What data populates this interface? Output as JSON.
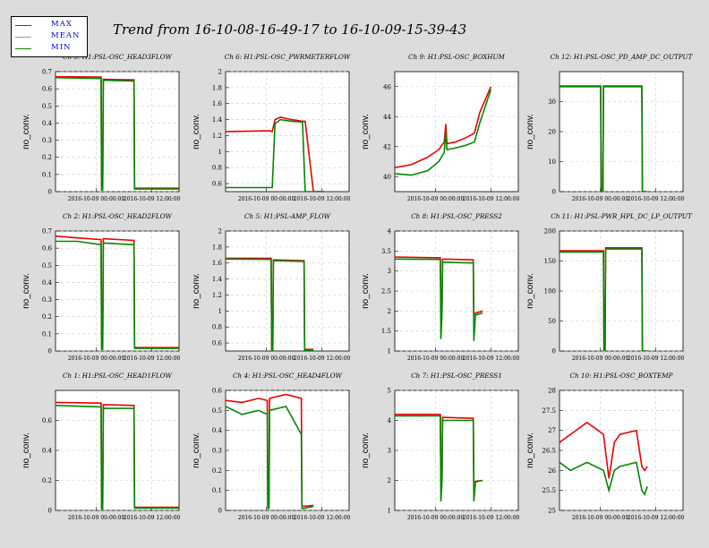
{
  "title": "Trend from 16-10-08-16-49-17 to 16-10-09-15-39-43",
  "legend": [
    {
      "label": "MAX",
      "color": "#ee0000"
    },
    {
      "label": "MEAN",
      "color": "#999999"
    },
    {
      "label": "MIN",
      "color": "#008800"
    }
  ],
  "chart_data": [
    {
      "type": "line",
      "title": "Ch 3: H1:PSL-OSC_HEAD3FLOW",
      "ylabel": "no_conv.",
      "ylim": [
        0,
        0.7
      ],
      "yticks": [
        "0",
        "0.1",
        "0.2",
        "0.3",
        "0.4",
        "0.5",
        "0.6",
        "0.7"
      ],
      "xticks": [
        "2016-10-09 00:00:00",
        "2016-10-09 12:00:00"
      ],
      "x": [
        0,
        0.83,
        0.84,
        0.86,
        0.87,
        1.43,
        1.44,
        1.47,
        2.01,
        2.04,
        2.1,
        2.25
      ],
      "series": [
        {
          "name": "MIN",
          "values": [
            0.665,
            0.66,
            0.01,
            0.01,
            0.65,
            0.645,
            0.015,
            0.015,
            0.015,
            0.015,
            0.015,
            0.015
          ]
        },
        {
          "name": "MAX",
          "values": [
            0.67,
            0.668,
            0.02,
            0.02,
            0.655,
            0.652,
            0.02,
            0.02,
            0.02,
            0.02,
            0.02,
            0.02
          ]
        }
      ]
    },
    {
      "type": "line",
      "title": "Ch 6: H1:PSL-OSC_PWRMETERFLOW",
      "ylabel": "no_conv.",
      "ylim": [
        0.5,
        2
      ],
      "yticks": [
        "0.6",
        "0.8",
        "1",
        "1.2",
        "1.4",
        "1.6",
        "1.8",
        "2"
      ],
      "xticks": [
        "2016-10-09 00:00:00",
        "2016-10-09 12:00:00"
      ],
      "x": [
        0,
        0.8,
        0.85,
        0.9,
        1.0,
        1.2,
        1.4,
        1.45,
        1.6,
        1.8
      ],
      "series": [
        {
          "name": "MIN",
          "values": [
            0.55,
            0.55,
            0.55,
            1.35,
            1.4,
            1.38,
            1.37,
            0.5,
            0.5,
            0.5
          ]
        },
        {
          "name": "MAX",
          "values": [
            1.25,
            1.26,
            1.25,
            1.4,
            1.43,
            1.4,
            1.38,
            1.38,
            0.5,
            0.5
          ]
        }
      ]
    },
    {
      "type": "line",
      "title": "Ch 9: H1:PSL-OSC_BOXHUM",
      "ylabel": "no_conv.",
      "ylim": [
        39,
        47
      ],
      "yticks": [
        "40",
        "42",
        "44",
        "46"
      ],
      "xticks": [
        "2016-10-09 00:00:00",
        "2016-10-09 12:00:00"
      ],
      "x": [
        0,
        0.3,
        0.6,
        0.8,
        0.9,
        0.93,
        0.95,
        1.1,
        1.3,
        1.45,
        1.55,
        1.75
      ],
      "series": [
        {
          "name": "MIN",
          "values": [
            40.2,
            40.1,
            40.4,
            41.0,
            41.6,
            43.0,
            41.8,
            41.9,
            42.1,
            42.3,
            43.6,
            45.8
          ]
        },
        {
          "name": "MAX",
          "values": [
            40.6,
            40.8,
            41.3,
            41.8,
            42.3,
            43.5,
            42.2,
            42.3,
            42.6,
            42.9,
            44.3,
            46.0
          ]
        }
      ]
    },
    {
      "type": "line",
      "title": "Ch 12: H1:PSL-OSC_PD_AMP_DC_OUTPUT",
      "ylabel": "no_conv.",
      "ylim": [
        0,
        40
      ],
      "yticks": [
        "0",
        "10",
        "20",
        "30"
      ],
      "xticks": [
        "2016-10-09 00:00:00",
        "2016-10-09 12:00:00"
      ],
      "x": [
        0,
        0.75,
        0.76,
        0.79,
        0.8,
        1.5,
        1.51,
        1.6
      ],
      "series": [
        {
          "name": "MIN",
          "values": [
            35,
            35,
            0,
            0,
            35,
            35,
            0,
            0
          ]
        },
        {
          "name": "MAX",
          "values": [
            35.2,
            35.2,
            0,
            0,
            35.2,
            35.2,
            0,
            0
          ]
        }
      ]
    },
    {
      "type": "line",
      "title": "Ch 2: H1:PSL-OSC_HEAD2FLOW",
      "ylabel": "no_conv.",
      "ylim": [
        0,
        0.7
      ],
      "yticks": [
        "0",
        "0.1",
        "0.2",
        "0.3",
        "0.4",
        "0.5",
        "0.6",
        "0.7"
      ],
      "xticks": [
        "2016-10-09 00:00:00",
        "2016-10-09 12:00:00"
      ],
      "x": [
        0,
        0.4,
        0.83,
        0.84,
        0.86,
        0.87,
        1.43,
        1.44,
        1.47,
        2.25
      ],
      "series": [
        {
          "name": "MIN",
          "values": [
            0.64,
            0.64,
            0.62,
            0.01,
            0.01,
            0.63,
            0.62,
            0.015,
            0.015,
            0.015
          ]
        },
        {
          "name": "MAX",
          "values": [
            0.67,
            0.66,
            0.65,
            0.02,
            0.02,
            0.655,
            0.645,
            0.02,
            0.02,
            0.02
          ]
        }
      ]
    },
    {
      "type": "line",
      "title": "Ch 5: H1:PSL-AMP_FLOW",
      "ylabel": "no_conv.",
      "ylim": [
        0.5,
        2
      ],
      "yticks": [
        "0.6",
        "0.8",
        "1",
        "1.2",
        "1.4",
        "1.6",
        "1.8",
        "2"
      ],
      "xticks": [
        "2016-10-09 00:00:00",
        "2016-10-09 12:00:00"
      ],
      "x": [
        0,
        0.83,
        0.84,
        0.86,
        0.87,
        1.43,
        1.44,
        1.47,
        1.6
      ],
      "series": [
        {
          "name": "MIN",
          "values": [
            1.65,
            1.645,
            0.51,
            0.51,
            1.63,
            1.62,
            0.51,
            0.51,
            0.51
          ]
        },
        {
          "name": "MAX",
          "values": [
            1.66,
            1.66,
            0.52,
            0.52,
            1.64,
            1.63,
            0.52,
            0.52,
            0.52
          ]
        }
      ]
    },
    {
      "type": "line",
      "title": "Ch 8: H1:PSL-OSC_PRESS2",
      "ylabel": "no_conv.",
      "ylim": [
        1,
        4
      ],
      "yticks": [
        "1",
        "1.5",
        "2",
        "2.5",
        "3",
        "3.5",
        "4"
      ],
      "xticks": [
        "2016-10-09 00:00:00",
        "2016-10-09 12:00:00"
      ],
      "x": [
        0,
        0.83,
        0.84,
        0.86,
        0.87,
        1.43,
        1.44,
        1.47,
        1.6
      ],
      "series": [
        {
          "name": "MIN",
          "values": [
            3.3,
            3.29,
            1.3,
            1.9,
            3.22,
            3.2,
            1.25,
            1.9,
            1.95
          ]
        },
        {
          "name": "MAX",
          "values": [
            3.35,
            3.33,
            2.0,
            2.0,
            3.3,
            3.28,
            1.9,
            1.95,
            2.0
          ]
        }
      ]
    },
    {
      "type": "line",
      "title": "Ch 11: H1:PSL-PWR_HPL_DC_LP_OUTPUT",
      "ylabel": "no_conv.",
      "ylim": [
        0,
        200
      ],
      "yticks": [
        "0",
        "50",
        "100",
        "150",
        "200"
      ],
      "xticks": [
        "2016-10-09 00:00:00",
        "2016-10-09 12:00:00"
      ],
      "x": [
        0,
        0.8,
        0.81,
        0.83,
        0.84,
        1.5,
        1.51,
        1.6
      ],
      "series": [
        {
          "name": "MIN",
          "values": [
            165,
            165,
            0,
            0,
            170,
            170,
            0,
            0
          ]
        },
        {
          "name": "MAX",
          "values": [
            167,
            167,
            0,
            0,
            172,
            172,
            0,
            0
          ]
        }
      ]
    },
    {
      "type": "line",
      "title": "Ch 1: H1:PSL-OSC_HEAD1FLOW",
      "ylabel": "no_conv.",
      "ylim": [
        0,
        0.8
      ],
      "yticks": [
        "0",
        "0.2",
        "0.4",
        "0.6"
      ],
      "xticks": [
        "2016-10-09 00:00:00",
        "2016-10-09 12:00:00"
      ],
      "x": [
        0,
        0.83,
        0.84,
        0.86,
        0.87,
        1.43,
        1.44,
        1.47,
        2.25
      ],
      "series": [
        {
          "name": "MIN",
          "values": [
            0.7,
            0.69,
            0.01,
            0.01,
            0.68,
            0.68,
            0.015,
            0.015,
            0.015
          ]
        },
        {
          "name": "MAX",
          "values": [
            0.72,
            0.715,
            0.02,
            0.02,
            0.705,
            0.7,
            0.02,
            0.02,
            0.02
          ]
        }
      ]
    },
    {
      "type": "line",
      "title": "Ch 4: H1:PSL-OSC_HEAD4FLOW",
      "ylabel": "no_conv.",
      "ylim": [
        0,
        0.6
      ],
      "yticks": [
        "0",
        "0.1",
        "0.2",
        "0.3",
        "0.4",
        "0.5",
        "0.6"
      ],
      "xticks": [
        "2016-10-09 00:00:00",
        "2016-10-09 12:00:00"
      ],
      "x": [
        0,
        0.3,
        0.6,
        0.76,
        0.77,
        0.79,
        0.8,
        1.1,
        1.38,
        1.39,
        1.42,
        1.6
      ],
      "series": [
        {
          "name": "MIN",
          "values": [
            0.52,
            0.48,
            0.5,
            0.48,
            0.01,
            0.01,
            0.5,
            0.52,
            0.38,
            0.01,
            0.01,
            0.02
          ]
        },
        {
          "name": "MAX",
          "values": [
            0.55,
            0.54,
            0.56,
            0.55,
            0.02,
            0.02,
            0.56,
            0.58,
            0.56,
            0.02,
            0.02,
            0.025
          ]
        }
      ]
    },
    {
      "type": "line",
      "title": "Ch 7: H1:PSL-OSC_PRESS1",
      "ylabel": "no_conv.",
      "ylim": [
        1,
        5
      ],
      "yticks": [
        "1",
        "2",
        "3",
        "4",
        "5"
      ],
      "xticks": [
        "2016-10-09 00:00:00",
        "2016-10-09 12:00:00"
      ],
      "x": [
        0,
        0.83,
        0.84,
        0.86,
        0.87,
        1.43,
        1.44,
        1.47,
        1.6
      ],
      "series": [
        {
          "name": "MIN",
          "values": [
            4.15,
            4.15,
            1.3,
            1.95,
            4.0,
            4.0,
            1.3,
            1.95,
            2.0
          ]
        },
        {
          "name": "MAX",
          "values": [
            4.2,
            4.2,
            1.95,
            1.95,
            4.1,
            4.07,
            1.95,
            1.97,
            2.0
          ]
        }
      ]
    },
    {
      "type": "line",
      "title": "Ch 10: H1:PSL-OSC_BOXTEMP",
      "ylabel": "no_conv.",
      "ylim": [
        25,
        28
      ],
      "yticks": [
        "25",
        "25.5",
        "26",
        "26.5",
        "27",
        "27.5",
        "28"
      ],
      "xticks": [
        "2016-10-09 00:00:00",
        "2016-10-09 12:00:00"
      ],
      "x": [
        0,
        0.2,
        0.5,
        0.8,
        0.9,
        1.0,
        1.1,
        1.4,
        1.5,
        1.55,
        1.6
      ],
      "series": [
        {
          "name": "MIN",
          "values": [
            26.2,
            26.0,
            26.2,
            26.0,
            25.5,
            26.0,
            26.1,
            26.2,
            25.5,
            25.4,
            25.6
          ]
        },
        {
          "name": "MAX",
          "values": [
            26.7,
            26.9,
            27.2,
            26.9,
            25.8,
            26.7,
            26.9,
            27.0,
            26.1,
            26.0,
            26.1
          ]
        }
      ]
    }
  ]
}
